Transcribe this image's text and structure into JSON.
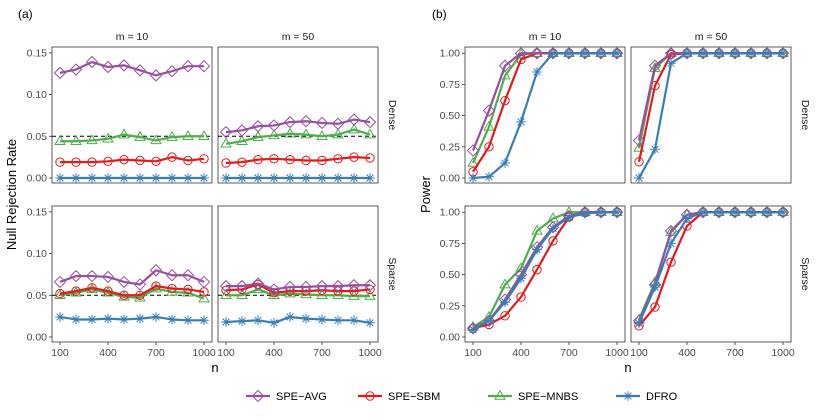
{
  "figure": {
    "legend": [
      {
        "name": "SPE−AVG",
        "color": "#984ea3",
        "marker": "diamond"
      },
      {
        "name": "SPE−SBM",
        "color": "#e41a1c",
        "marker": "circle"
      },
      {
        "name": "SPE−MNBS",
        "color": "#4daf4a",
        "marker": "triangle"
      },
      {
        "name": "DFRO",
        "color": "#377eb8",
        "marker": "asterisk"
      }
    ]
  },
  "chart_data": [
    {
      "type": "line",
      "tag": "(a)",
      "xlabel": "n",
      "ylabel": "Null Rejection Rate",
      "column_labels": [
        "m = 10",
        "m = 50"
      ],
      "row_labels": [
        "Dense",
        "Sparse"
      ],
      "x": [
        100,
        200,
        300,
        400,
        500,
        600,
        700,
        800,
        900,
        1000
      ],
      "x_ticks": [
        100,
        400,
        700,
        1000
      ],
      "ylim": [
        -0.006,
        0.157
      ],
      "y_ticks": [
        0.0,
        0.05,
        0.1,
        0.15
      ],
      "y_tick_labels": [
        "0.00",
        "0.05",
        "0.10",
        "0.15"
      ],
      "reference_line": 0.05,
      "panels": [
        {
          "row": 0,
          "col": 0,
          "series": [
            {
              "name": "SPE−AVG",
              "values": [
                0.126,
                0.13,
                0.139,
                0.133,
                0.135,
                0.129,
                0.123,
                0.128,
                0.134,
                0.134
              ]
            },
            {
              "name": "SPE−SBM",
              "values": [
                0.019,
                0.019,
                0.019,
                0.02,
                0.022,
                0.021,
                0.02,
                0.025,
                0.021,
                0.023
              ]
            },
            {
              "name": "SPE−MNBS",
              "values": [
                0.044,
                0.044,
                0.045,
                0.047,
                0.052,
                0.049,
                0.045,
                0.049,
                0.05,
                0.05
              ]
            },
            {
              "name": "DFRO",
              "values": [
                0.0,
                0.0,
                0.0,
                0.0,
                0.0,
                0.0,
                0.0,
                0.0,
                0.0,
                0.0
              ]
            }
          ]
        },
        {
          "row": 0,
          "col": 1,
          "series": [
            {
              "name": "SPE−AVG",
              "values": [
                0.055,
                0.057,
                0.062,
                0.063,
                0.067,
                0.068,
                0.066,
                0.065,
                0.07,
                0.067
              ]
            },
            {
              "name": "SPE−SBM",
              "values": [
                0.018,
                0.019,
                0.022,
                0.023,
                0.022,
                0.021,
                0.021,
                0.023,
                0.025,
                0.024
              ]
            },
            {
              "name": "SPE−MNBS",
              "values": [
                0.041,
                0.044,
                0.049,
                0.051,
                0.053,
                0.052,
                0.05,
                0.052,
                0.058,
                0.052
              ]
            },
            {
              "name": "DFRO",
              "values": [
                0.0,
                0.0,
                0.0,
                0.0,
                0.0,
                0.0,
                0.0,
                0.0,
                0.0,
                0.0
              ]
            }
          ]
        },
        {
          "row": 1,
          "col": 0,
          "series": [
            {
              "name": "SPE−AVG",
              "values": [
                0.066,
                0.073,
                0.073,
                0.072,
                0.066,
                0.063,
                0.08,
                0.074,
                0.074,
                0.066
              ]
            },
            {
              "name": "SPE−SBM",
              "values": [
                0.052,
                0.055,
                0.059,
                0.055,
                0.05,
                0.05,
                0.061,
                0.058,
                0.057,
                0.054
              ]
            },
            {
              "name": "SPE−MNBS",
              "values": [
                0.05,
                0.053,
                0.057,
                0.053,
                0.048,
                0.047,
                0.058,
                0.054,
                0.053,
                0.046
              ]
            },
            {
              "name": "DFRO",
              "values": [
                0.024,
                0.021,
                0.021,
                0.022,
                0.021,
                0.022,
                0.024,
                0.021,
                0.02,
                0.02
              ]
            }
          ]
        },
        {
          "row": 1,
          "col": 1,
          "series": [
            {
              "name": "SPE−AVG",
              "values": [
                0.061,
                0.061,
                0.064,
                0.057,
                0.06,
                0.06,
                0.061,
                0.061,
                0.062,
                0.062
              ]
            },
            {
              "name": "SPE−SBM",
              "values": [
                0.056,
                0.057,
                0.063,
                0.053,
                0.055,
                0.055,
                0.056,
                0.055,
                0.055,
                0.057
              ]
            },
            {
              "name": "SPE−MNBS",
              "values": [
                0.05,
                0.05,
                0.057,
                0.05,
                0.052,
                0.051,
                0.05,
                0.05,
                0.049,
                0.049
              ]
            },
            {
              "name": "DFRO",
              "values": [
                0.018,
                0.019,
                0.02,
                0.017,
                0.024,
                0.022,
                0.021,
                0.02,
                0.02,
                0.017
              ]
            }
          ]
        }
      ]
    },
    {
      "type": "line",
      "tag": "(b)",
      "xlabel": "n",
      "ylabel": "Power",
      "column_labels": [
        "m = 10",
        "m = 50"
      ],
      "row_labels": [
        "Dense",
        "Sparse"
      ],
      "x": [
        100,
        200,
        300,
        400,
        500,
        600,
        700,
        800,
        900,
        1000
      ],
      "x_ticks": [
        100,
        400,
        700,
        1000
      ],
      "ylim": [
        -0.04,
        1.05
      ],
      "y_ticks": [
        0.0,
        0.25,
        0.5,
        0.75,
        1.0
      ],
      "y_tick_labels": [
        "0.00",
        "0.25",
        "0.50",
        "0.75",
        "1.00"
      ],
      "panels": [
        {
          "row": 0,
          "col": 0,
          "series": [
            {
              "name": "SPE−AVG",
              "values": [
                0.22,
                0.54,
                0.9,
                1.0,
                1.0,
                1.0,
                1.0,
                1.0,
                1.0,
                1.0
              ]
            },
            {
              "name": "SPE−SBM",
              "values": [
                0.05,
                0.25,
                0.62,
                0.95,
                1.0,
                1.0,
                1.0,
                1.0,
                1.0,
                1.0
              ]
            },
            {
              "name": "SPE−MNBS",
              "values": [
                0.12,
                0.41,
                0.82,
                0.99,
                1.0,
                1.0,
                1.0,
                1.0,
                1.0,
                1.0
              ]
            },
            {
              "name": "DFRO",
              "values": [
                0.0,
                0.01,
                0.12,
                0.45,
                0.85,
                1.0,
                1.0,
                1.0,
                1.0,
                1.0
              ]
            }
          ]
        },
        {
          "row": 0,
          "col": 1,
          "series": [
            {
              "name": "SPE−AVG",
              "values": [
                0.3,
                0.9,
                1.0,
                1.0,
                1.0,
                1.0,
                1.0,
                1.0,
                1.0,
                1.0
              ]
            },
            {
              "name": "SPE−SBM",
              "values": [
                0.13,
                0.74,
                0.99,
                1.0,
                1.0,
                1.0,
                1.0,
                1.0,
                1.0,
                1.0
              ]
            },
            {
              "name": "SPE−MNBS",
              "values": [
                0.24,
                0.88,
                1.0,
                1.0,
                1.0,
                1.0,
                1.0,
                1.0,
                1.0,
                1.0
              ]
            },
            {
              "name": "DFRO",
              "values": [
                0.0,
                0.23,
                0.92,
                1.0,
                1.0,
                1.0,
                1.0,
                1.0,
                1.0,
                1.0
              ]
            }
          ]
        },
        {
          "row": 1,
          "col": 0,
          "series": [
            {
              "name": "SPE−AVG",
              "values": [
                0.07,
                0.13,
                0.3,
                0.5,
                0.72,
                0.88,
                0.97,
                1.0,
                1.0,
                1.0
              ]
            },
            {
              "name": "SPE−SBM",
              "values": [
                0.07,
                0.1,
                0.17,
                0.32,
                0.54,
                0.77,
                0.96,
                1.0,
                1.0,
                1.0
              ]
            },
            {
              "name": "SPE−MNBS",
              "values": [
                0.08,
                0.16,
                0.42,
                0.55,
                0.85,
                0.95,
                1.0,
                1.0,
                1.0,
                1.0
              ]
            },
            {
              "name": "DFRO",
              "values": [
                0.06,
                0.13,
                0.28,
                0.47,
                0.7,
                0.87,
                0.96,
                0.99,
                1.0,
                1.0
              ]
            }
          ]
        },
        {
          "row": 1,
          "col": 1,
          "series": [
            {
              "name": "SPE−AVG",
              "values": [
                0.13,
                0.42,
                0.85,
                0.98,
                1.0,
                1.0,
                1.0,
                1.0,
                1.0,
                1.0
              ]
            },
            {
              "name": "SPE−SBM",
              "values": [
                0.09,
                0.24,
                0.6,
                0.89,
                1.0,
                1.0,
                1.0,
                1.0,
                1.0,
                1.0
              ]
            },
            {
              "name": "SPE−MNBS",
              "values": [
                0.14,
                0.44,
                0.84,
                0.98,
                1.0,
                1.0,
                1.0,
                1.0,
                1.0,
                1.0
              ]
            },
            {
              "name": "DFRO",
              "values": [
                0.11,
                0.4,
                0.75,
                0.95,
                1.0,
                1.0,
                1.0,
                1.0,
                1.0,
                1.0
              ]
            }
          ]
        }
      ]
    }
  ]
}
